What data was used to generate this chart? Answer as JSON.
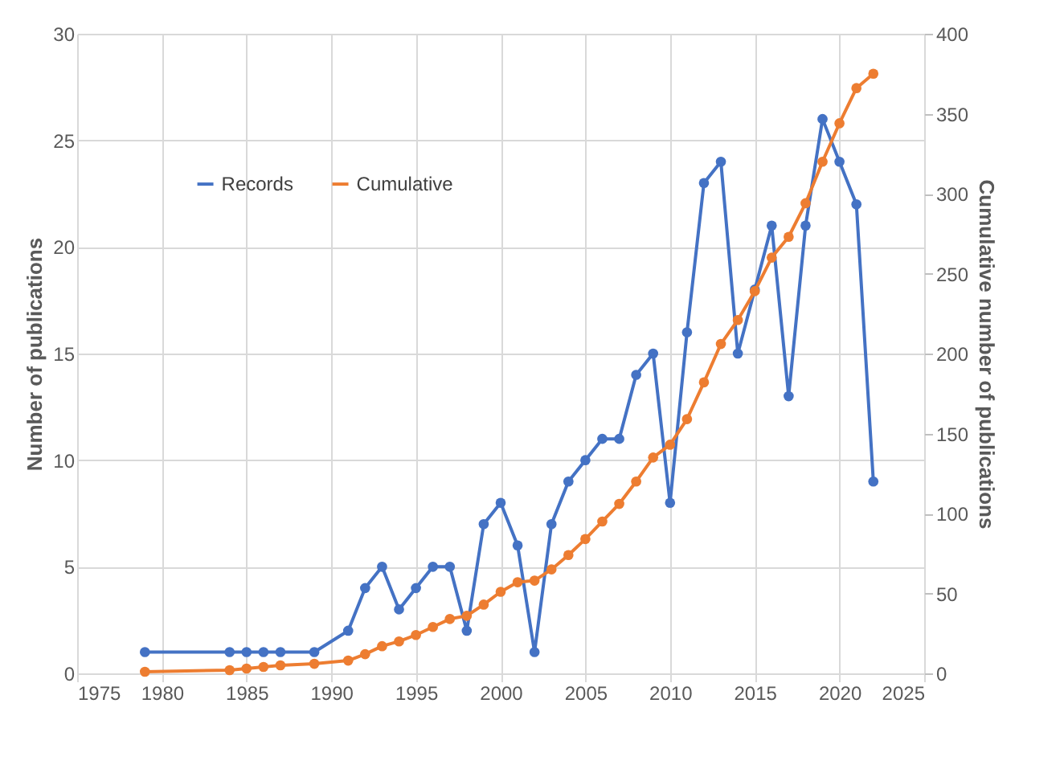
{
  "chart_data": {
    "type": "line",
    "xlabel": null,
    "ylabel": "Number of publications",
    "y2label": "Cumulative number of publications",
    "x": [
      1979,
      1984,
      1985,
      1986,
      1987,
      1989,
      1991,
      1992,
      1993,
      1994,
      1995,
      1996,
      1997,
      1998,
      1999,
      2000,
      2001,
      2002,
      2003,
      2004,
      2005,
      2006,
      2007,
      2008,
      2009,
      2010,
      2011,
      2012,
      2013,
      2014,
      2015,
      2016,
      2017,
      2018,
      2019,
      2020,
      2021,
      2022
    ],
    "series": [
      {
        "name": "Records",
        "color": "#4472c4",
        "values": [
          1,
          1,
          1,
          1,
          1,
          1,
          2,
          4,
          5,
          3,
          4,
          5,
          5,
          2,
          7,
          8,
          6,
          1,
          7,
          9,
          10,
          11,
          11,
          14,
          15,
          8,
          16,
          23,
          24,
          15,
          18,
          21,
          13,
          21,
          26,
          24,
          22,
          9
        ]
      },
      {
        "name": "Cumulative",
        "color": "#ed7d31",
        "axis": "y2",
        "values": [
          1,
          2,
          3,
          4,
          5,
          6,
          8,
          12,
          17,
          20,
          24,
          29,
          34,
          36,
          43,
          51,
          57,
          58,
          65,
          74,
          84,
          95,
          106,
          120,
          135,
          143,
          159,
          182,
          206,
          221,
          239,
          260,
          273,
          294,
          320,
          344,
          366,
          375
        ]
      }
    ],
    "xlim": [
      1975,
      2025
    ],
    "xticks": [
      1975,
      1980,
      1985,
      1990,
      1995,
      2000,
      2005,
      2010,
      2015,
      2020,
      2025
    ],
    "ylim": [
      0,
      30
    ],
    "yticks": [
      0,
      5,
      10,
      15,
      20,
      25,
      30
    ],
    "y2lim": [
      0,
      400
    ],
    "y2ticks": [
      0,
      50,
      100,
      150,
      200,
      250,
      300,
      350,
      400
    ],
    "grid": true,
    "legend": "top left",
    "marker": "circle",
    "line_style": "solid"
  }
}
